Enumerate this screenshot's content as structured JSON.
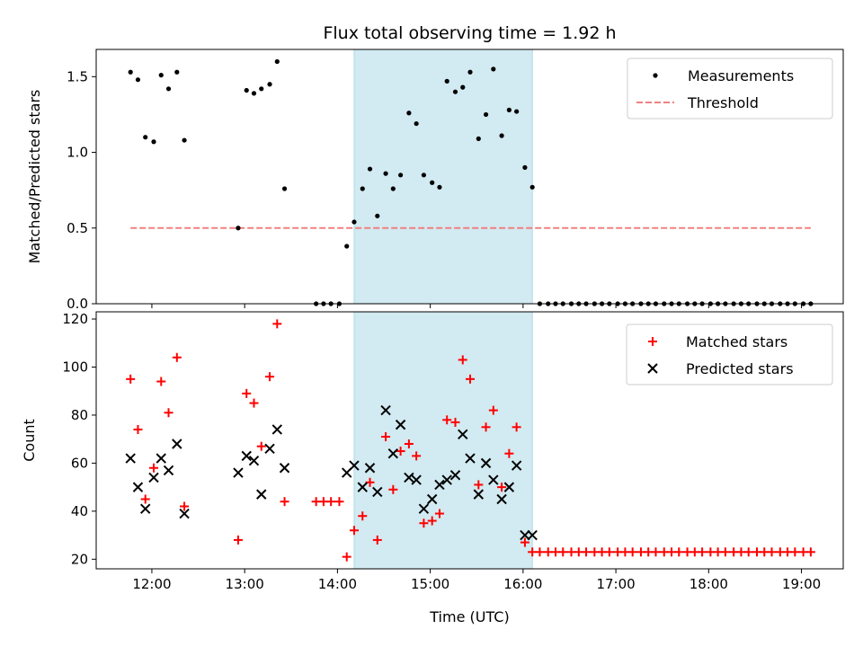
{
  "chart_data": [
    {
      "type": "scatter",
      "title": "Flux total observing time = 1.92 h",
      "ylabel": "Matched/Predicted stars",
      "xlabel": "",
      "xlim": [
        11.4,
        19.45
      ],
      "ylim": [
        0,
        1.68
      ],
      "yticks": [
        0.0,
        0.5,
        1.0,
        1.5
      ],
      "yticklabels": [
        "0.0",
        "0.5",
        "1.0",
        "1.5"
      ],
      "shaded_region": [
        14.18,
        16.1
      ],
      "shaded_color": "#add8e6",
      "legend": {
        "placement": "upper right",
        "entries": [
          "Measurements",
          "Threshold"
        ]
      },
      "series": [
        {
          "name": "Measurements",
          "kind": "dot",
          "color": "#000000",
          "points": [
            [
              11.77,
              1.53
            ],
            [
              11.85,
              1.48
            ],
            [
              11.93,
              1.1
            ],
            [
              12.02,
              1.07
            ],
            [
              12.1,
              1.51
            ],
            [
              12.18,
              1.42
            ],
            [
              12.27,
              1.53
            ],
            [
              12.35,
              1.08
            ],
            [
              12.93,
              0.5
            ],
            [
              13.02,
              1.41
            ],
            [
              13.1,
              1.39
            ],
            [
              13.18,
              1.42
            ],
            [
              13.27,
              1.45
            ],
            [
              13.35,
              1.6
            ],
            [
              13.43,
              0.76
            ],
            [
              13.77,
              0.0
            ],
            [
              13.85,
              0.0
            ],
            [
              13.93,
              0.0
            ],
            [
              14.02,
              0.0
            ],
            [
              14.1,
              0.38
            ],
            [
              14.18,
              0.54
            ],
            [
              14.27,
              0.76
            ],
            [
              14.35,
              0.89
            ],
            [
              14.43,
              0.58
            ],
            [
              14.52,
              0.86
            ],
            [
              14.6,
              0.76
            ],
            [
              14.68,
              0.85
            ],
            [
              14.77,
              1.26
            ],
            [
              14.85,
              1.19
            ],
            [
              14.93,
              0.85
            ],
            [
              15.02,
              0.8
            ],
            [
              15.1,
              0.77
            ],
            [
              15.18,
              1.47
            ],
            [
              15.27,
              1.4
            ],
            [
              15.35,
              1.43
            ],
            [
              15.43,
              1.53
            ],
            [
              15.52,
              1.09
            ],
            [
              15.6,
              1.25
            ],
            [
              15.68,
              1.55
            ],
            [
              15.77,
              1.11
            ],
            [
              15.85,
              1.28
            ],
            [
              15.93,
              1.27
            ],
            [
              16.02,
              0.9
            ],
            [
              16.1,
              0.77
            ],
            [
              16.18,
              0.0
            ],
            [
              16.27,
              0.0
            ],
            [
              16.35,
              0.0
            ],
            [
              16.43,
              0.0
            ],
            [
              16.52,
              0.0
            ],
            [
              16.6,
              0.0
            ],
            [
              16.68,
              0.0
            ],
            [
              16.77,
              0.0
            ],
            [
              16.85,
              0.0
            ],
            [
              16.93,
              0.0
            ],
            [
              17.02,
              0.0
            ],
            [
              17.1,
              0.0
            ],
            [
              17.18,
              0.0
            ],
            [
              17.27,
              0.0
            ],
            [
              17.35,
              0.0
            ],
            [
              17.43,
              0.0
            ],
            [
              17.52,
              0.0
            ],
            [
              17.6,
              0.0
            ],
            [
              17.68,
              0.0
            ],
            [
              17.77,
              0.0
            ],
            [
              17.85,
              0.0
            ],
            [
              17.93,
              0.0
            ],
            [
              18.02,
              0.0
            ],
            [
              18.1,
              0.0
            ],
            [
              18.18,
              0.0
            ],
            [
              18.27,
              0.0
            ],
            [
              18.35,
              0.0
            ],
            [
              18.43,
              0.0
            ],
            [
              18.52,
              0.0
            ],
            [
              18.6,
              0.0
            ],
            [
              18.68,
              0.0
            ],
            [
              18.77,
              0.0
            ],
            [
              18.85,
              0.0
            ],
            [
              18.93,
              0.0
            ],
            [
              19.02,
              0.0
            ],
            [
              19.1,
              0.0
            ]
          ]
        },
        {
          "name": "Threshold",
          "kind": "dashed-line",
          "color": "#f08080",
          "points": [
            [
              11.77,
              0.5
            ],
            [
              19.1,
              0.5
            ]
          ]
        }
      ]
    },
    {
      "type": "scatter",
      "title": "",
      "ylabel": "Count",
      "xlabel": "Time (UTC)",
      "xlim": [
        11.4,
        19.45
      ],
      "ylim": [
        16,
        123
      ],
      "yticks": [
        20,
        40,
        60,
        80,
        100,
        120
      ],
      "yticklabels": [
        "20",
        "40",
        "60",
        "80",
        "100",
        "120"
      ],
      "xticks": [
        12,
        13,
        14,
        15,
        16,
        17,
        18,
        19
      ],
      "xticklabels": [
        "12:00",
        "13:00",
        "14:00",
        "15:00",
        "16:00",
        "17:00",
        "18:00",
        "19:00"
      ],
      "shaded_region": [
        14.18,
        16.1
      ],
      "shaded_color": "#add8e6",
      "legend": {
        "placement": "upper right",
        "entries": [
          "Matched stars",
          "Predicted stars"
        ]
      },
      "series": [
        {
          "name": "Matched stars",
          "kind": "plus",
          "color": "#ff0000",
          "points": [
            [
              11.77,
              95
            ],
            [
              11.85,
              74
            ],
            [
              11.93,
              45
            ],
            [
              12.02,
              58
            ],
            [
              12.1,
              94
            ],
            [
              12.18,
              81
            ],
            [
              12.27,
              104
            ],
            [
              12.35,
              42
            ],
            [
              12.93,
              28
            ],
            [
              13.02,
              89
            ],
            [
              13.1,
              85
            ],
            [
              13.18,
              67
            ],
            [
              13.27,
              96
            ],
            [
              13.35,
              118
            ],
            [
              13.43,
              44
            ],
            [
              13.77,
              44
            ],
            [
              13.85,
              44
            ],
            [
              13.93,
              44
            ],
            [
              14.02,
              44
            ],
            [
              14.1,
              21
            ],
            [
              14.18,
              32
            ],
            [
              14.27,
              38
            ],
            [
              14.35,
              52
            ],
            [
              14.43,
              28
            ],
            [
              14.52,
              71
            ],
            [
              14.6,
              49
            ],
            [
              14.68,
              65
            ],
            [
              14.77,
              68
            ],
            [
              14.85,
              63
            ],
            [
              14.93,
              35
            ],
            [
              15.02,
              36
            ],
            [
              15.1,
              39
            ],
            [
              15.18,
              78
            ],
            [
              15.27,
              77
            ],
            [
              15.35,
              103
            ],
            [
              15.43,
              95
            ],
            [
              15.52,
              51
            ],
            [
              15.6,
              75
            ],
            [
              15.68,
              82
            ],
            [
              15.77,
              50
            ],
            [
              15.85,
              64
            ],
            [
              15.93,
              75
            ],
            [
              16.02,
              27
            ],
            [
              16.1,
              23
            ],
            [
              16.18,
              23
            ],
            [
              16.27,
              23
            ],
            [
              16.35,
              23
            ],
            [
              16.43,
              23
            ],
            [
              16.52,
              23
            ],
            [
              16.6,
              23
            ],
            [
              16.68,
              23
            ],
            [
              16.77,
              23
            ],
            [
              16.85,
              23
            ],
            [
              16.93,
              23
            ],
            [
              17.02,
              23
            ],
            [
              17.1,
              23
            ],
            [
              17.18,
              23
            ],
            [
              17.27,
              23
            ],
            [
              17.35,
              23
            ],
            [
              17.43,
              23
            ],
            [
              17.52,
              23
            ],
            [
              17.6,
              23
            ],
            [
              17.68,
              23
            ],
            [
              17.77,
              23
            ],
            [
              17.85,
              23
            ],
            [
              17.93,
              23
            ],
            [
              18.02,
              23
            ],
            [
              18.1,
              23
            ],
            [
              18.18,
              23
            ],
            [
              18.27,
              23
            ],
            [
              18.35,
              23
            ],
            [
              18.43,
              23
            ],
            [
              18.52,
              23
            ],
            [
              18.6,
              23
            ],
            [
              18.68,
              23
            ],
            [
              18.77,
              23
            ],
            [
              18.85,
              23
            ],
            [
              18.93,
              23
            ],
            [
              19.02,
              23
            ],
            [
              19.1,
              23
            ]
          ]
        },
        {
          "name": "Predicted stars",
          "kind": "x",
          "color": "#000000",
          "points": [
            [
              11.77,
              62
            ],
            [
              11.85,
              50
            ],
            [
              11.93,
              41
            ],
            [
              12.02,
              54
            ],
            [
              12.1,
              62
            ],
            [
              12.18,
              57
            ],
            [
              12.27,
              68
            ],
            [
              12.35,
              39
            ],
            [
              12.93,
              56
            ],
            [
              13.02,
              63
            ],
            [
              13.1,
              61
            ],
            [
              13.18,
              47
            ],
            [
              13.27,
              66
            ],
            [
              13.35,
              74
            ],
            [
              13.43,
              58
            ],
            [
              14.1,
              56
            ],
            [
              14.18,
              59
            ],
            [
              14.27,
              50
            ],
            [
              14.35,
              58
            ],
            [
              14.43,
              48
            ],
            [
              14.52,
              82
            ],
            [
              14.6,
              64
            ],
            [
              14.68,
              76
            ],
            [
              14.77,
              54
            ],
            [
              14.85,
              53
            ],
            [
              14.93,
              41
            ],
            [
              15.02,
              45
            ],
            [
              15.1,
              51
            ],
            [
              15.18,
              53
            ],
            [
              15.27,
              55
            ],
            [
              15.35,
              72
            ],
            [
              15.43,
              62
            ],
            [
              15.52,
              47
            ],
            [
              15.6,
              60
            ],
            [
              15.68,
              53
            ],
            [
              15.77,
              45
            ],
            [
              15.85,
              50
            ],
            [
              15.93,
              59
            ],
            [
              16.02,
              30
            ],
            [
              16.1,
              30
            ]
          ]
        }
      ]
    }
  ]
}
